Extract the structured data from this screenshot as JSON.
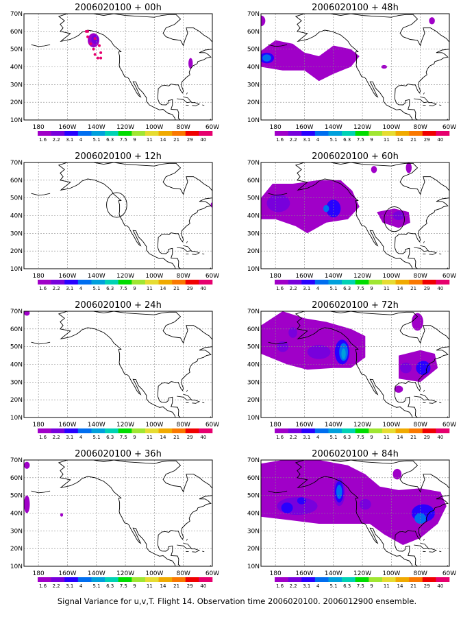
{
  "colorbar": {
    "labels": [
      "1.6",
      "2.2",
      "3.1",
      "4",
      "5.1",
      "6.3",
      "7.5",
      "9",
      "11",
      "14",
      "21",
      "29",
      "40"
    ],
    "colors": [
      "#a000c8",
      "#7800dc",
      "#2800ff",
      "#006ef0",
      "#00a0dc",
      "#00d2b4",
      "#00dc00",
      "#a0e632",
      "#e6dc32",
      "#f0aa00",
      "#fa7800",
      "#f00000",
      "#e6006e"
    ]
  },
  "axes": {
    "lat_labels": [
      "70N",
      "60N",
      "50N",
      "40N",
      "30N",
      "20N",
      "10N"
    ],
    "lon_labels": [
      "180",
      "160W",
      "140W",
      "120W",
      "100W",
      "80W",
      "60W"
    ]
  },
  "panels": [
    {
      "id": "p00",
      "title": "2006020100 + 00h"
    },
    {
      "id": "p48",
      "title": "2006020100 + 48h"
    },
    {
      "id": "p12",
      "title": "2006020100 + 12h"
    },
    {
      "id": "p60",
      "title": "2006020100 + 60h"
    },
    {
      "id": "p24",
      "title": "2006020100 + 24h"
    },
    {
      "id": "p72",
      "title": "2006020100 + 72h"
    },
    {
      "id": "p36",
      "title": "2006020100 + 36h"
    },
    {
      "id": "p84",
      "title": "2006020100 + 84h"
    }
  ],
  "caption": "Signal Variance for u,v,T. Flight 14. Observation time 2006020100. 2006012900 ensemble."
}
